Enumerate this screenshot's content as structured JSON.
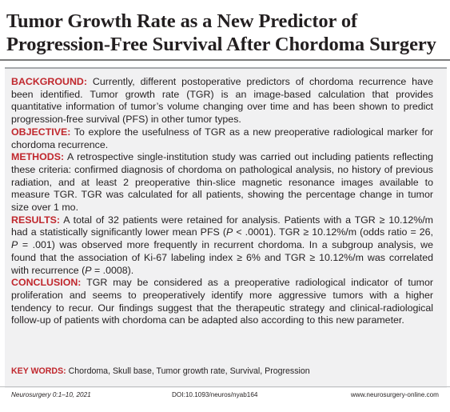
{
  "title": "Tumor Growth Rate as a New Predictor of Progression-Free Survival After Chordoma Surgery",
  "abstract": {
    "background_label": "BACKGROUND:",
    "background_text": " Currently, different postoperative predictors of chordoma recurrence have been identified. Tumor growth rate (TGR) is an image-based calculation that provides quantitative information of tumor’s volume changing over time and has been shown to predict progression-free survival (PFS) in other tumor types.",
    "objective_label": "OBJECTIVE:",
    "objective_text": " To explore the usefulness of TGR as a new preoperative radiological marker for chordoma recurrence.",
    "methods_label": "METHODS:",
    "methods_text": " A retrospective single-institution study was carried out including patients reflecting these criteria: confirmed diagnosis of chordoma on pathological analysis, no history of previous radiation, and at least 2 preoperative thin-slice magnetic resonance images available to measure TGR. TGR was calculated for all patients, showing the percentage change in tumor size over 1 mo.",
    "results_label": "RESULTS:",
    "results_parts": [
      " A total of 32 patients were retained for analysis. Patients with a TGR ≥ 10.12%/m had a statistically significantly lower mean PFS (",
      "P",
      " < .0001). TGR ≥ 10.12%/m (odds ratio = 26, ",
      "P",
      " = .001) was observed more frequently in recurrent chordoma. In a subgroup analysis, we found that the association of Ki-67 labeling index ≥ 6% and TGR ≥ 10.12%/m was correlated with recurrence (",
      "P",
      " = .0008)."
    ],
    "conclusion_label": "CONCLUSION:",
    "conclusion_text": " TGR may be considered as a preoperative radiological indicator of tumor proliferation and seems to preoperatively identify more aggressive tumors with a higher tendency to recur. Our findings suggest that the therapeutic strategy and clinical-radiological follow-up of patients with chordoma can be adapted also according to this new parameter."
  },
  "keywords": {
    "label": "KEY WORDS:",
    "text": " Chordoma, Skull base, Tumor growth rate, Survival, Progression"
  },
  "footer": {
    "citation": "Neurosurgery 0:1–10, 2021",
    "doi": "DOI:10.1093/neuros/nyab164",
    "url": "www.neurosurgery-online.com"
  },
  "colors": {
    "label_red": "#c0272d",
    "box_background": "#f1f1f2",
    "text": "#231f20"
  }
}
